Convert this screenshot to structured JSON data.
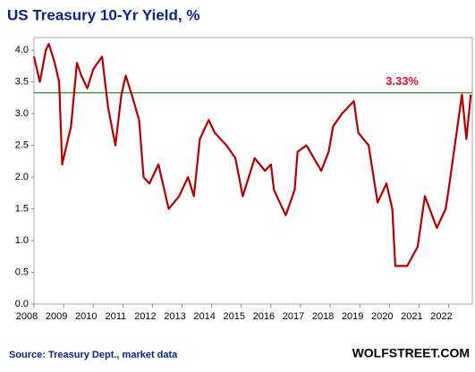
{
  "chart_data": {
    "type": "line",
    "title": "US Treasury 10-Yr Yield, %",
    "source": "Source: Treasury Dept., market data",
    "brand": "WOLFSTREET.COM",
    "x": [
      2008.0,
      2008.2,
      2008.4,
      2008.5,
      2008.7,
      2008.85,
      2008.95,
      2009.0,
      2009.25,
      2009.45,
      2009.6,
      2009.8,
      2010.0,
      2010.3,
      2010.5,
      2010.75,
      2010.95,
      2011.1,
      2011.3,
      2011.55,
      2011.7,
      2011.9,
      2012.2,
      2012.55,
      2012.9,
      2013.2,
      2013.4,
      2013.6,
      2013.9,
      2014.1,
      2014.5,
      2014.8,
      2015.05,
      2015.45,
      2015.8,
      2016.0,
      2016.1,
      2016.5,
      2016.8,
      2016.9,
      2017.2,
      2017.7,
      2017.95,
      2018.1,
      2018.4,
      2018.8,
      2018.95,
      2019.3,
      2019.6,
      2019.9,
      2020.1,
      2020.2,
      2020.6,
      2020.95,
      2021.2,
      2021.6,
      2021.9,
      2022.0,
      2022.3,
      2022.45,
      2022.6,
      2022.75
    ],
    "series": [
      {
        "name": "10-Yr Yield",
        "color": "#b00000",
        "values": [
          3.9,
          3.5,
          4.0,
          4.1,
          3.8,
          3.5,
          2.2,
          2.3,
          2.8,
          3.8,
          3.6,
          3.4,
          3.7,
          3.9,
          3.1,
          2.5,
          3.3,
          3.6,
          3.3,
          2.9,
          2.0,
          1.9,
          2.2,
          1.5,
          1.7,
          2.0,
          1.7,
          2.6,
          2.9,
          2.7,
          2.5,
          2.3,
          1.7,
          2.3,
          2.1,
          2.2,
          1.8,
          1.4,
          1.8,
          2.4,
          2.5,
          2.1,
          2.4,
          2.8,
          3.0,
          3.2,
          2.7,
          2.5,
          1.6,
          1.9,
          1.5,
          0.6,
          0.6,
          0.9,
          1.7,
          1.2,
          1.5,
          1.8,
          2.8,
          3.3,
          2.6,
          3.3
        ]
      }
    ],
    "reference_line": {
      "value": 3.33,
      "label": "3.33%",
      "color": "#2e8b2e",
      "label_color": "#e0102a"
    },
    "xlim": [
      2008,
      2022.8
    ],
    "xticks": [
      2008,
      2009,
      2010,
      2011,
      2012,
      2013,
      2014,
      2015,
      2016,
      2017,
      2018,
      2019,
      2020,
      2021,
      2022
    ],
    "ylim": [
      0,
      4.2
    ],
    "yticks": [
      {
        "value": 0,
        "label": "0.0"
      },
      {
        "value": 0.5,
        "label": "0.5"
      },
      {
        "value": 1,
        "label": "1.0"
      },
      {
        "value": 1.5,
        "label": "1.5"
      },
      {
        "value": 2,
        "label": "2.0"
      },
      {
        "value": 2.5,
        "label": "2.5"
      },
      {
        "value": 3,
        "label": "3.0"
      },
      {
        "value": 3.5,
        "label": "3.5"
      },
      {
        "value": 4,
        "label": "4.0"
      }
    ],
    "grid": false
  }
}
